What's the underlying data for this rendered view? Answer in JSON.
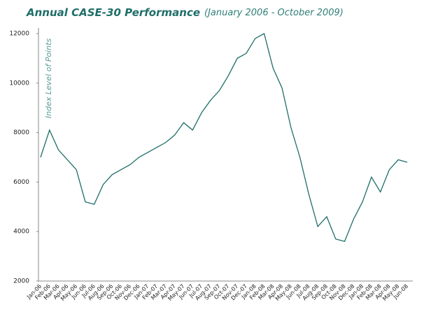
{
  "chart_data": {
    "type": "line",
    "title": "Annual CASE-30 Performance",
    "subtitle": "(January 2006 - October 2009)",
    "y_label": "Index Level of Points",
    "categories": [
      "Jan-06",
      "Feb-06",
      "Mar-06",
      "Apr-06",
      "May-06",
      "Jun-06",
      "Jul-06",
      "Aug-06",
      "Sep-06",
      "Oct-06",
      "Nov-06",
      "Dec-06",
      "Jan-07",
      "Feb-07",
      "Mar-07",
      "Apr-07",
      "May-07",
      "Jun-07",
      "Jul-07",
      "Aug-07",
      "Sep-07",
      "Oct-07",
      "Nov-07",
      "Dec-07",
      "Jan-08",
      "Feb-08",
      "Mar-08",
      "Apr-08",
      "May-08",
      "Jun-08",
      "Jul-08",
      "Aug-08",
      "Sep-08",
      "Oct-08",
      "Nov-08",
      "Dec-08",
      "Jan-08",
      "Feb-08",
      "Mar-08",
      "Apr-08",
      "May-08",
      "Jun-08"
    ],
    "series": [
      {
        "name": "CASE-30",
        "color": "#1e6e68",
        "values": [
          7000,
          8100,
          7300,
          6900,
          6500,
          5200,
          5100,
          5900,
          6300,
          6500,
          6700,
          7000,
          7200,
          7400,
          7600,
          7900,
          8400,
          8100,
          8800,
          9300,
          9700,
          10300,
          11000,
          11200,
          11800,
          12000,
          10600,
          9800,
          8200,
          7000,
          5500,
          4200,
          4600,
          3700,
          3600,
          4500,
          5200,
          6200,
          5600,
          6500,
          6900,
          6800
        ]
      }
    ],
    "ylim": [
      2000,
      12000
    ],
    "yticks": [
      2000,
      4000,
      6000,
      8000,
      10000,
      12000
    ]
  }
}
